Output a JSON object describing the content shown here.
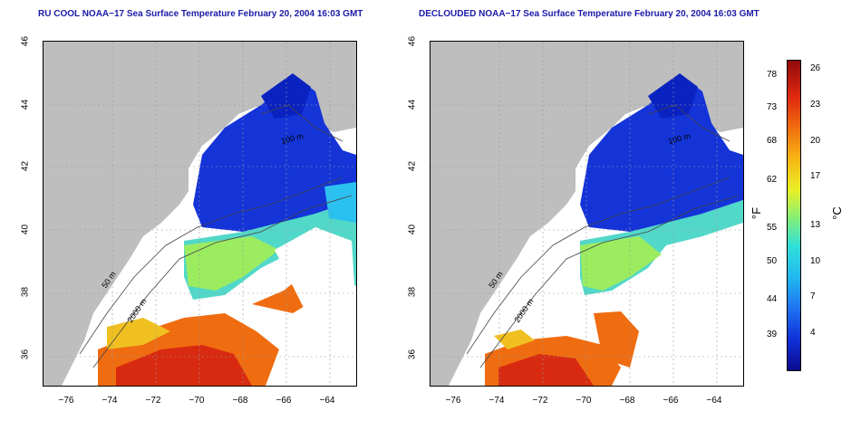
{
  "panels": [
    {
      "title": "RU COOL NOAA−17 Sea Surface Temperature February 20, 2004 16:03 GMT",
      "contour_labels": [
        "100 m",
        "50 m",
        "2000 m"
      ]
    },
    {
      "title": "DECLOUDED NOAA−17 Sea Surface Temperature February 20, 2004 16:03 GMT",
      "contour_labels": [
        "100 m",
        "50 m",
        "2000 m"
      ]
    }
  ],
  "axes": {
    "lat_ticks": [
      "36",
      "38",
      "40",
      "42",
      "44",
      "46"
    ],
    "lon_ticks": [
      "−76",
      "−74",
      "−72",
      "−70",
      "−68",
      "−66",
      "−64"
    ]
  },
  "colorbar": {
    "fahrenheit_ticks": [
      "78",
      "73",
      "68",
      "62",
      "55",
      "50",
      "44",
      "39"
    ],
    "celsius_ticks": [
      "26",
      "23",
      "20",
      "17",
      "13",
      "10",
      "7",
      "4"
    ],
    "unit_f": "°F",
    "unit_c": "°C"
  },
  "colors": {
    "land": "#bebebe",
    "cloud": "#ffffff",
    "title": "#1a1aa8"
  }
}
